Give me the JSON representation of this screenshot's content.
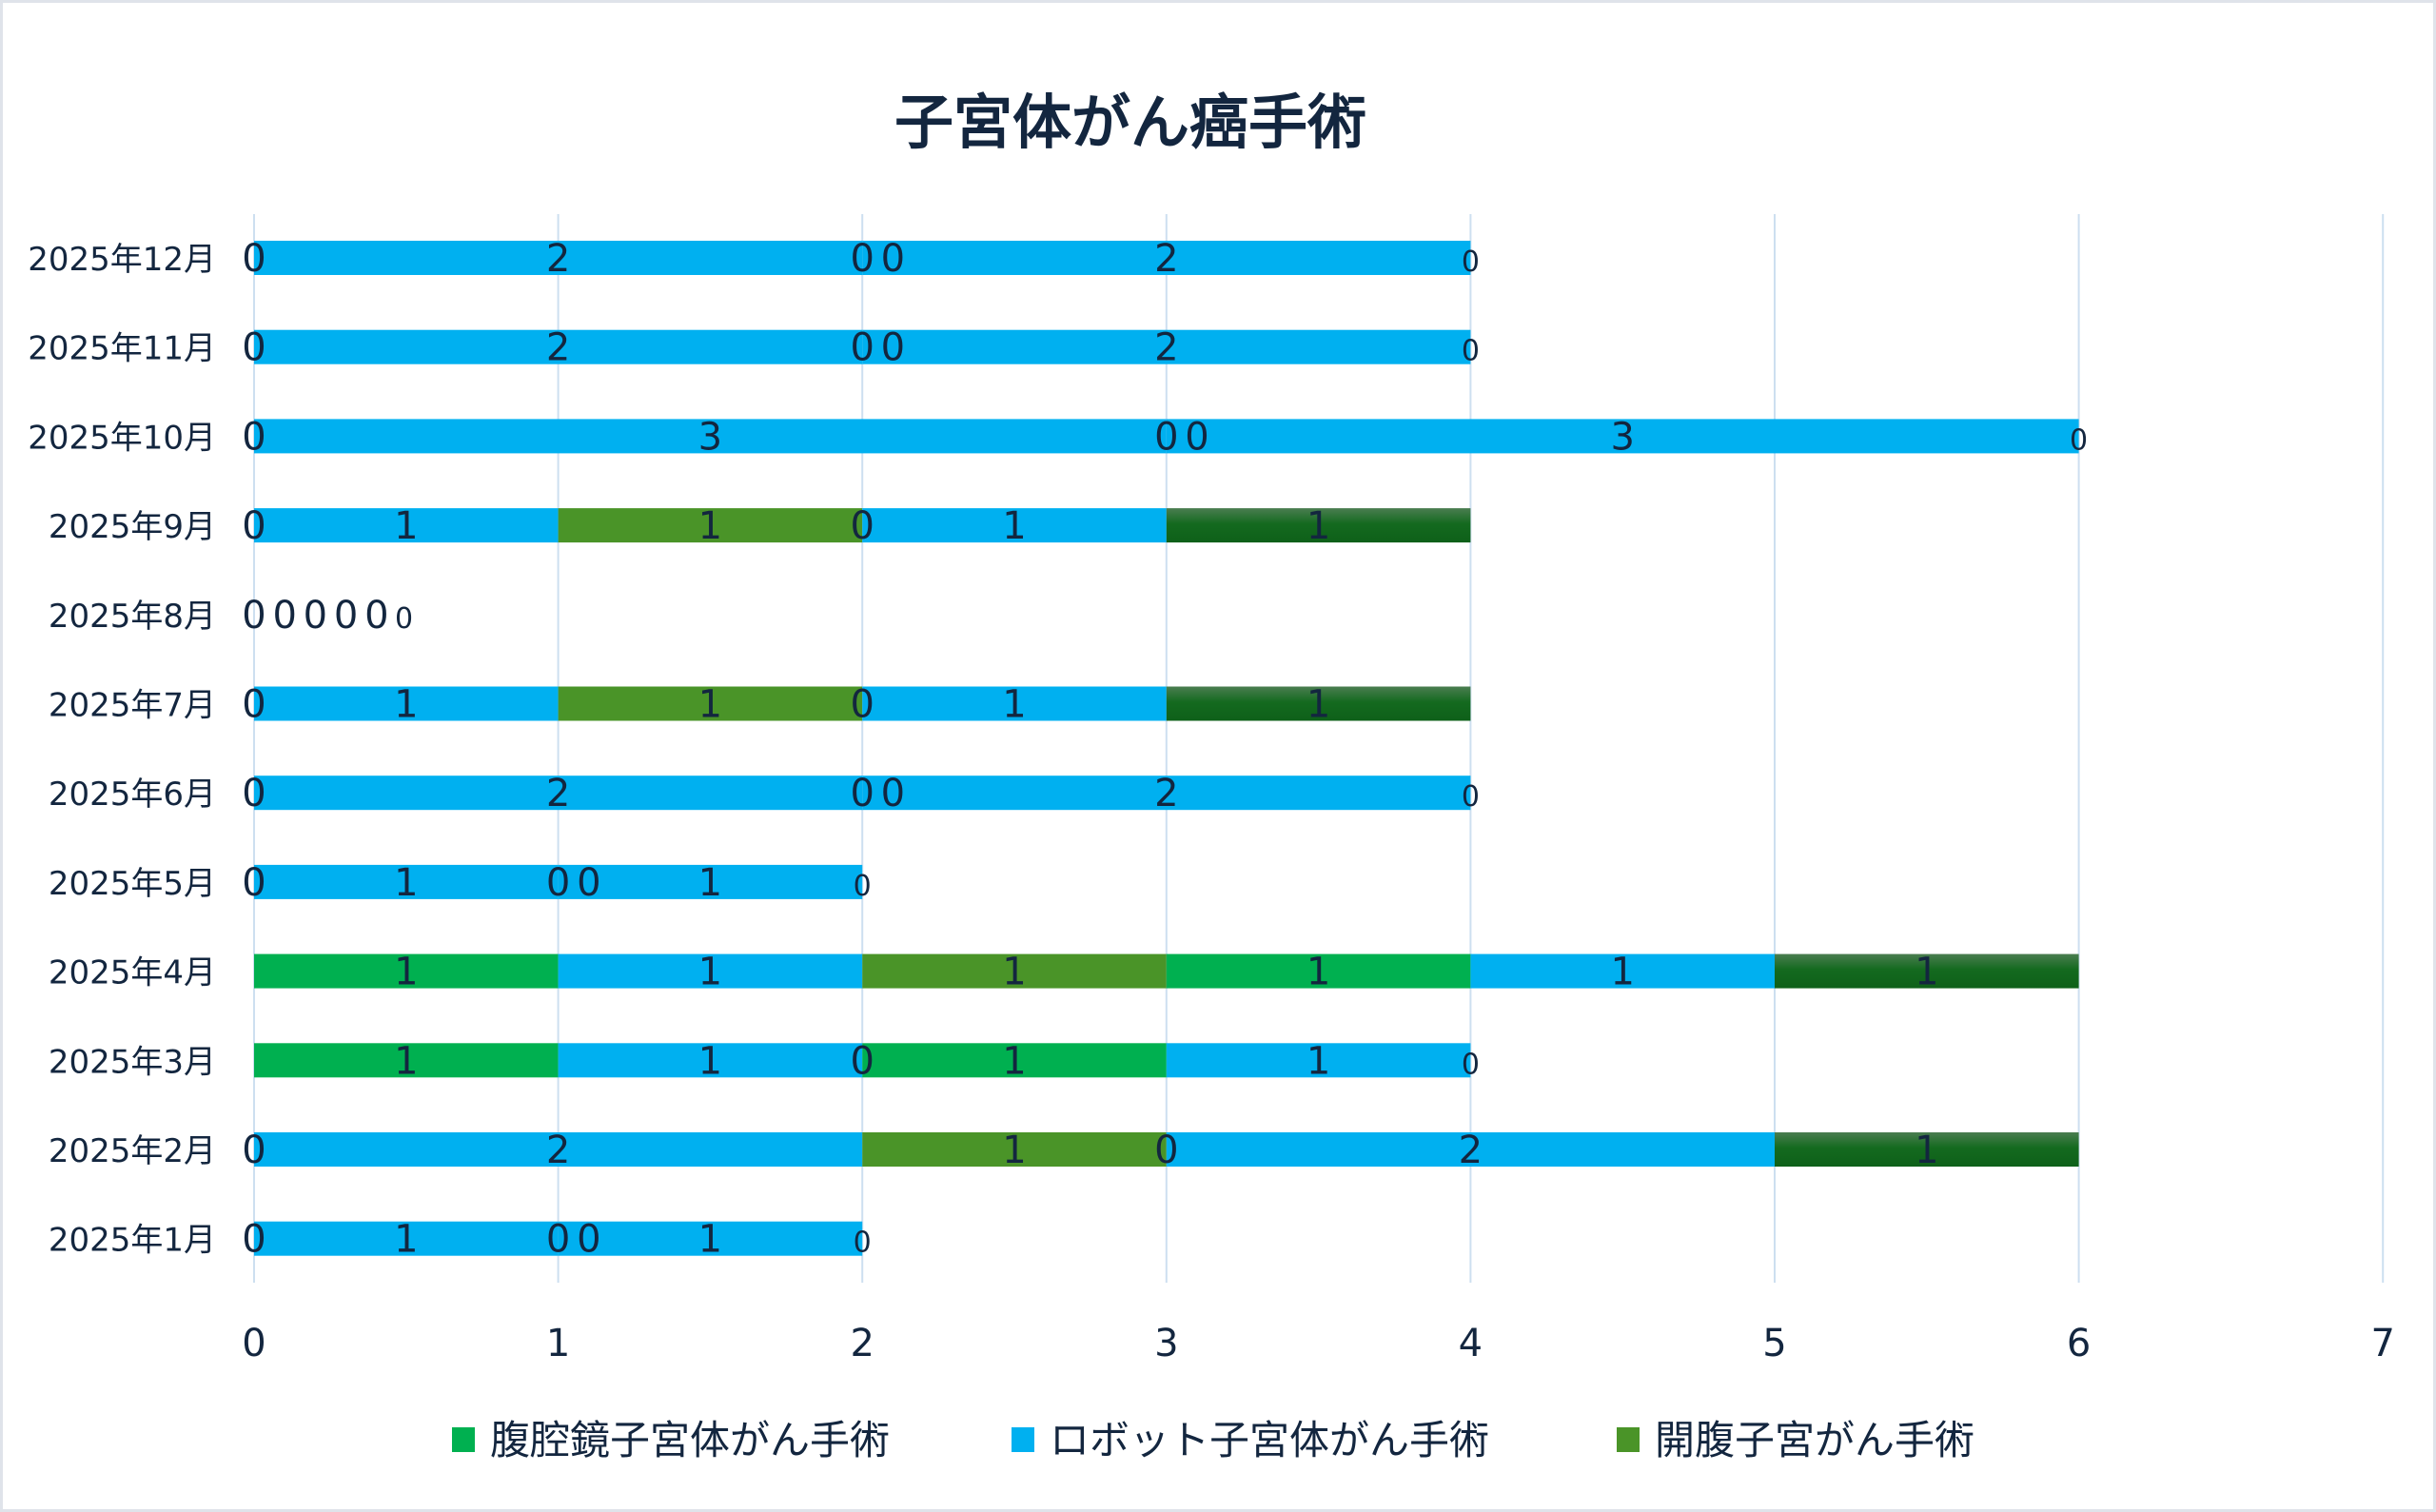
{
  "chart_data": {
    "type": "bar",
    "orientation": "horizontal",
    "stacked": true,
    "title": "子宮体がん癌手術",
    "xlabel": "",
    "ylabel": "",
    "xlim": [
      0,
      7
    ],
    "xticks": [
      "0",
      "1",
      "2",
      "3",
      "4",
      "5",
      "6",
      "7"
    ],
    "grid": true,
    "legend_position": "bottom",
    "categories": [
      "2025年1月",
      "2025年2月",
      "2025年3月",
      "2025年4月",
      "2025年5月",
      "2025年6月",
      "2025年7月",
      "2025年8月",
      "2025年9月",
      "2025年10月",
      "2025年11月",
      "2025年12月"
    ],
    "series": [
      {
        "name": "腹腔鏡子宮体がん手術",
        "color": "#00b050",
        "in_legend": true,
        "values": [
          0,
          0,
          1,
          1,
          0,
          0,
          0,
          0,
          0,
          0,
          0,
          0
        ]
      },
      {
        "name": "ロボット子宮体がん手術",
        "color": "#00b0f0",
        "in_legend": true,
        "values": [
          1,
          2,
          1,
          1,
          1,
          2,
          1,
          0,
          1,
          3,
          2,
          2
        ]
      },
      {
        "name": "開腹子宮がん手術",
        "color": "#4a9428",
        "in_legend": true,
        "values": [
          0,
          1,
          0,
          1,
          0,
          0,
          1,
          0,
          1,
          0,
          0,
          0
        ]
      },
      {
        "name": "",
        "color": "#00b050",
        "in_legend": false,
        "values": [
          0,
          0,
          1,
          1,
          0,
          0,
          0,
          0,
          0,
          0,
          0,
          0
        ]
      },
      {
        "name": "",
        "color": "#00b0f0",
        "in_legend": false,
        "values": [
          1,
          2,
          1,
          1,
          1,
          2,
          1,
          0,
          1,
          3,
          2,
          2
        ]
      },
      {
        "name": "",
        "color": "#136b1e",
        "gradient": true,
        "in_legend": false,
        "values": [
          0,
          1,
          0,
          1,
          0,
          0,
          1,
          0,
          1,
          0,
          0,
          0
        ]
      }
    ]
  }
}
